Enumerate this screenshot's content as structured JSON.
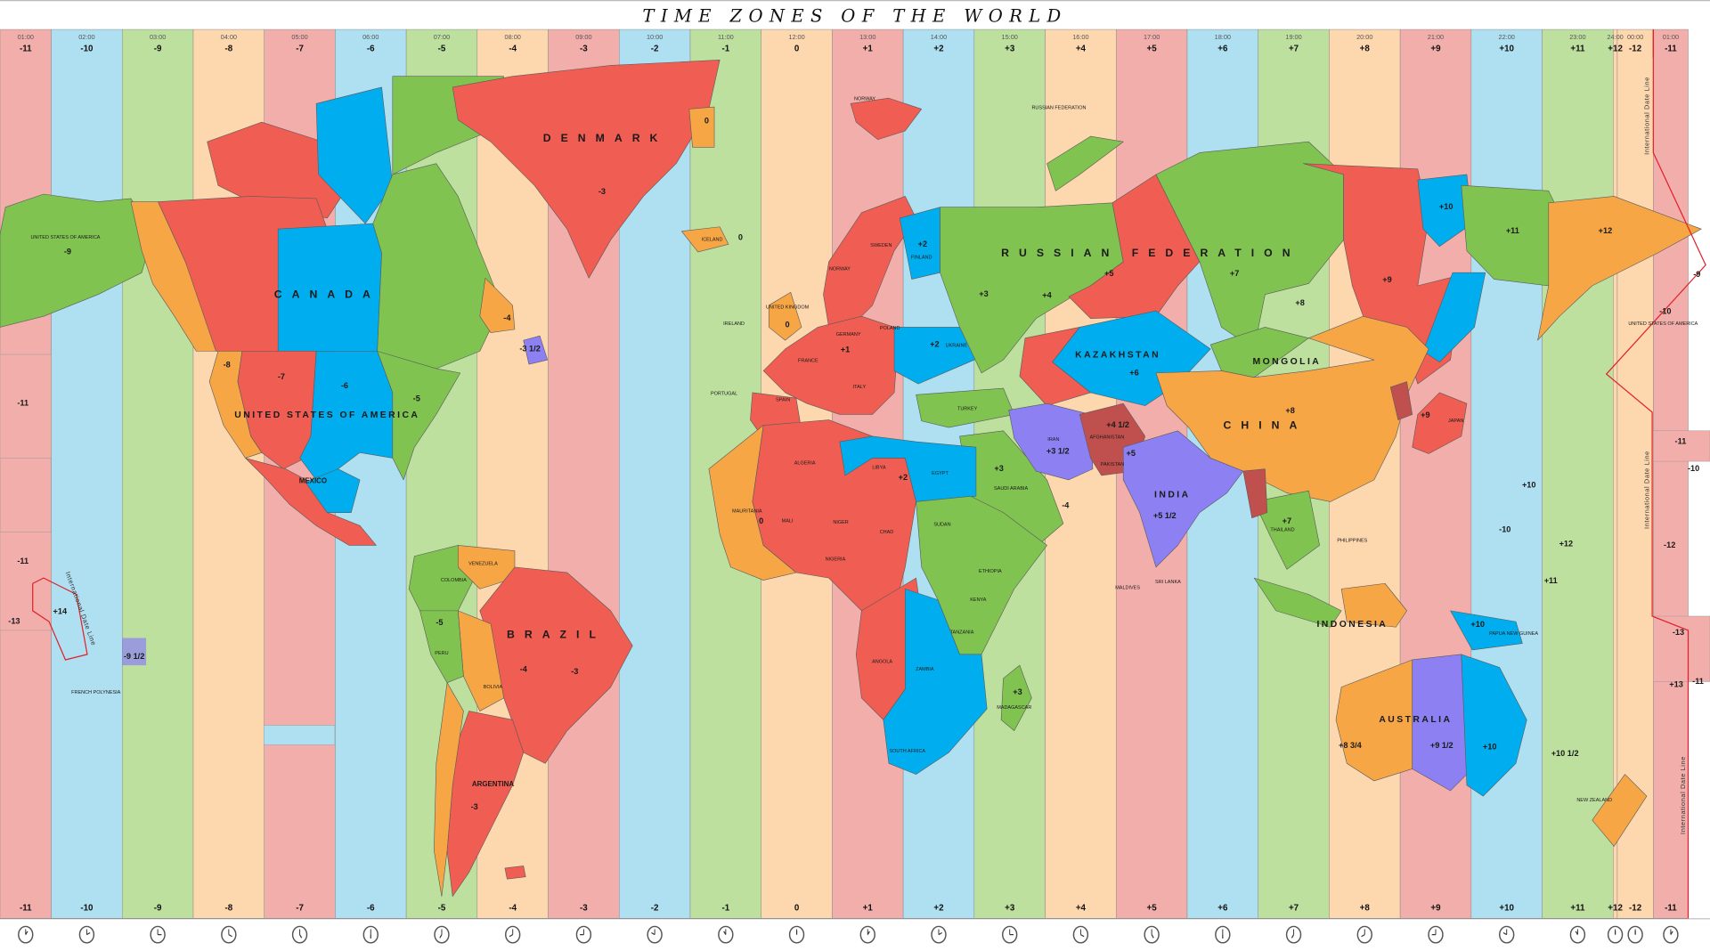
{
  "title": "TIME ZONES OF THE WORLD",
  "colors": {
    "pink": "#f2aeab",
    "blue": "#aee0f1",
    "green": "#bde09f",
    "peach": "#fdd7ae",
    "land_red": "#f05d52",
    "land_orange": "#f7a646",
    "land_green": "#80c350",
    "land_blue": "#00aeef",
    "land_purple": "#8c80f2",
    "land_darkred": "#c0504d",
    "date_line": "#e0202a"
  },
  "zones": [
    {
      "time": "01:00",
      "offset": "-11",
      "color": "pink"
    },
    {
      "time": "02:00",
      "offset": "-10",
      "color": "blue"
    },
    {
      "time": "03:00",
      "offset": "-9",
      "color": "green"
    },
    {
      "time": "04:00",
      "offset": "-8",
      "color": "peach"
    },
    {
      "time": "05:00",
      "offset": "-7",
      "color": "pink"
    },
    {
      "time": "06:00",
      "offset": "-6",
      "color": "blue"
    },
    {
      "time": "07:00",
      "offset": "-5",
      "color": "green"
    },
    {
      "time": "08:00",
      "offset": "-4",
      "color": "peach"
    },
    {
      "time": "09:00",
      "offset": "-3",
      "color": "pink"
    },
    {
      "time": "10:00",
      "offset": "-2",
      "color": "blue"
    },
    {
      "time": "11:00",
      "offset": "-1",
      "color": "green"
    },
    {
      "time": "12:00",
      "offset": "0",
      "color": "peach"
    },
    {
      "time": "13:00",
      "offset": "+1",
      "color": "pink"
    },
    {
      "time": "14:00",
      "offset": "+2",
      "color": "blue"
    },
    {
      "time": "15:00",
      "offset": "+3",
      "color": "green"
    },
    {
      "time": "16:00",
      "offset": "+4",
      "color": "peach"
    },
    {
      "time": "17:00",
      "offset": "+5",
      "color": "pink"
    },
    {
      "time": "18:00",
      "offset": "+6",
      "color": "blue"
    },
    {
      "time": "19:00",
      "offset": "+7",
      "color": "green"
    },
    {
      "time": "20:00",
      "offset": "+8",
      "color": "peach"
    },
    {
      "time": "21:00",
      "offset": "+9",
      "color": "pink"
    },
    {
      "time": "22:00",
      "offset": "+10",
      "color": "blue"
    },
    {
      "time": "23:00",
      "offset": "+11",
      "color": "green"
    },
    {
      "time": "24:00",
      "offset": "+12",
      "color": "peach"
    },
    {
      "time": "00:00",
      "offset": "-12",
      "color": "peach"
    },
    {
      "time": "01:00",
      "offset": "-11",
      "color": "pink"
    }
  ],
  "date_line_label": "International Date Line",
  "labels": [
    "DENMARK",
    "-3",
    "0",
    "CANADA",
    "UNITED STATES OF AMERICA",
    "UNITED STATES OF AMERICA",
    "-9",
    "-8",
    "-7",
    "-6",
    "-5",
    "-4",
    "-3 1/2",
    "MEXICO",
    "-11",
    "-11",
    "-13",
    "+14",
    "-9 1/2",
    "FRENCH POLYNESIA",
    "BRAZIL",
    "-3",
    "BOLIVIA",
    "-4",
    "PERU",
    "-5",
    "COLOMBIA",
    "VENEZUELA",
    "ARGENTINA",
    "-3",
    "ICELAND",
    "0",
    "NORWAY",
    "RUSSIAN FEDERATION",
    "RUSSIAN FEDERATION",
    "+3",
    "+5",
    "+7",
    "+8",
    "+9",
    "+10",
    "+11",
    "+12",
    "+4",
    "KAZAKHSTAN",
    "+6",
    "MONGOLIA",
    "CHINA",
    "+8",
    "INDIA",
    "+5 1/2",
    "IRAN",
    "+3 1/2",
    "TURKEY",
    "SAUDI ARABIA",
    "+3",
    "EGYPT",
    "LIBYA",
    "+2",
    "ALGERIA",
    "NIGER",
    "CHAD",
    "SUDAN",
    "ETHIOPIA",
    "KENYA",
    "TANZANIA",
    "ANGOLA",
    "ZAMBIA",
    "SOUTH AFRICA",
    "MADAGASCAR",
    "+3",
    "NIGERIA",
    "MALI",
    "MAURITANIA",
    "0",
    "SPAIN",
    "FRANCE",
    "ITALY",
    "GERMANY",
    "POLAND",
    "+1",
    "UKRAINE",
    "+2",
    "FINLAND",
    "+2",
    "SWEDEN",
    "NORWAY",
    "JAPAN",
    "+9",
    "AUSTRALIA",
    "+8 3/4",
    "+9 1/2",
    "+10",
    "INDONESIA",
    "PAPUA NEW GUINEA",
    "+10",
    "NEW ZEALAND",
    "+7",
    "THAILAND",
    "-10",
    "-9",
    "-11",
    "-10",
    "-12",
    "-13",
    "-11",
    "+12",
    "+11",
    "-10",
    "+10",
    "+10 1/2",
    "+13",
    "UNITED STATES OF AMERICA",
    "IRELAND",
    "PORTUGAL",
    "UNITED KINGDOM",
    "0",
    "MALDIVES",
    "SRI LANKA",
    "PHILIPPINES",
    "-4",
    "+5",
    "+4 1/2",
    "AFGHANISTAN",
    "PAKISTAN"
  ]
}
